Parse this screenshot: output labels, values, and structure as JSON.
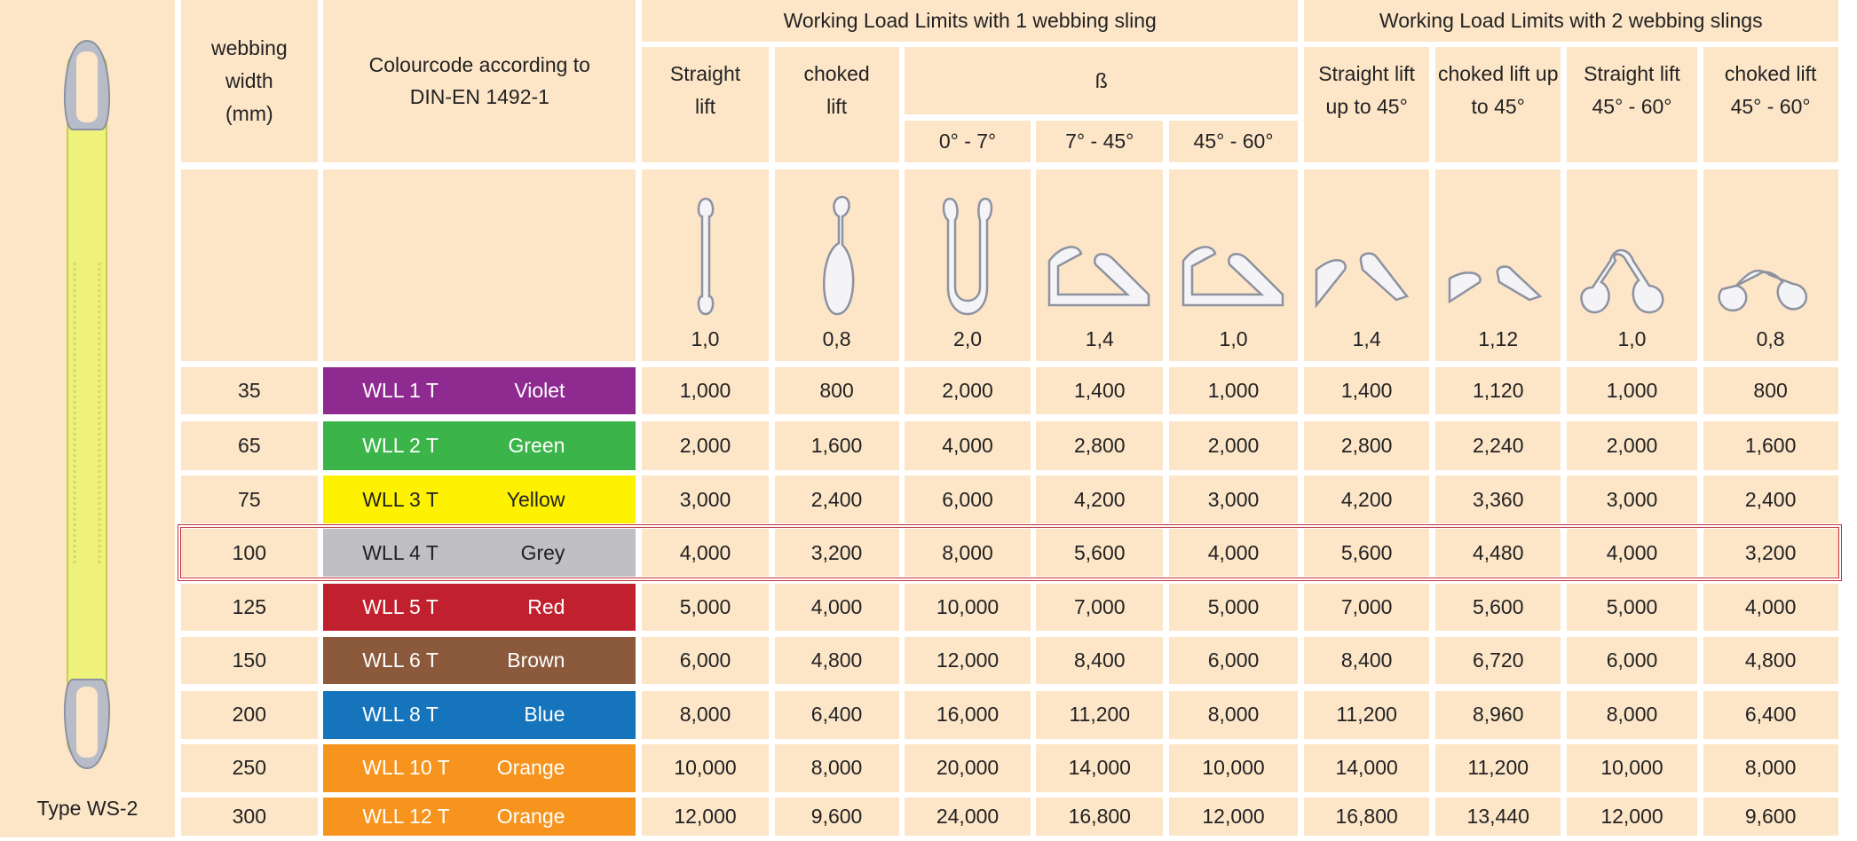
{
  "side": {
    "label": "Type WS-2"
  },
  "table": {
    "headers": {
      "width": "webbing width (mm)",
      "colourcode": "Colourcode according to DIN-EN 1492-1",
      "group_1": "Working Load Limits with 1 webbing sling",
      "group_2": "Working Load Limits with 2 webbing slings",
      "straight_lift": "Straight lift",
      "choked_lift": "choked lift",
      "beta": "ß",
      "beta_ranges": [
        "0° - 7°",
        "7° - 45°",
        "45° - 60°"
      ],
      "two_sling": [
        "Straight lift up to 45°",
        "choked lift up to 45°",
        "Straight lift 45° - 60°",
        "choked lift 45° - 60°"
      ]
    },
    "factors": [
      "1,0",
      "0,8",
      "2,0",
      "1,4",
      "1,0",
      "1,4",
      "1,12",
      "1,0",
      "0,8"
    ],
    "rows": [
      {
        "width": "35",
        "wll": "WLL 1 T",
        "colour": "Violet",
        "color": "#8e2a90",
        "values": [
          "1,000",
          "800",
          "2,000",
          "1,400",
          "1,000",
          "1,400",
          "1,120",
          "1,000",
          "800"
        ]
      },
      {
        "width": "65",
        "wll": "WLL 2 T",
        "colour": "Green",
        "color": "#3bb54a",
        "values": [
          "2,000",
          "1,600",
          "4,000",
          "2,800",
          "2,000",
          "2,800",
          "2,240",
          "2,000",
          "1,600"
        ]
      },
      {
        "width": "75",
        "wll": "WLL 3 T",
        "colour": "Yellow",
        "color": "#fff200",
        "values": [
          "3,000",
          "2,400",
          "6,000",
          "4,200",
          "3,000",
          "4,200",
          "3,360",
          "3,000",
          "2,400"
        ]
      },
      {
        "width": "100",
        "wll": "WLL 4 T",
        "colour": "Grey",
        "color": "#c0bfc4",
        "highlight": true,
        "values": [
          "4,000",
          "3,200",
          "8,000",
          "5,600",
          "4,000",
          "5,600",
          "4,480",
          "4,000",
          "3,200"
        ]
      },
      {
        "width": "125",
        "wll": "WLL 5 T",
        "colour": "Red",
        "color": "#c1202f",
        "values": [
          "5,000",
          "4,000",
          "10,000",
          "7,000",
          "5,000",
          "7,000",
          "5,600",
          "5,000",
          "4,000"
        ]
      },
      {
        "width": "150",
        "wll": "WLL 6 T",
        "colour": "Brown",
        "color": "#8b5a3c",
        "values": [
          "6,000",
          "4,800",
          "12,000",
          "8,400",
          "6,000",
          "8,400",
          "6,720",
          "6,000",
          "4,800"
        ]
      },
      {
        "width": "200",
        "wll": "WLL 8 T",
        "colour": "Blue",
        "color": "#1574bb",
        "values": [
          "8,000",
          "6,400",
          "16,000",
          "11,200",
          "8,000",
          "11,200",
          "8,960",
          "8,000",
          "6,400"
        ]
      },
      {
        "width": "250",
        "wll": "WLL 10 T",
        "colour": "Orange",
        "color": "#f7941d",
        "values": [
          "10,000",
          "8,000",
          "20,000",
          "14,000",
          "10,000",
          "14,000",
          "11,200",
          "10,000",
          "8,000"
        ]
      },
      {
        "width": "300",
        "wll": "WLL 12 T",
        "colour": "Orange",
        "color": "#f7941d",
        "values": [
          "12,000",
          "9,600",
          "24,000",
          "16,800",
          "12,000",
          "16,800",
          "13,440",
          "12,000",
          "9,600"
        ]
      }
    ]
  }
}
